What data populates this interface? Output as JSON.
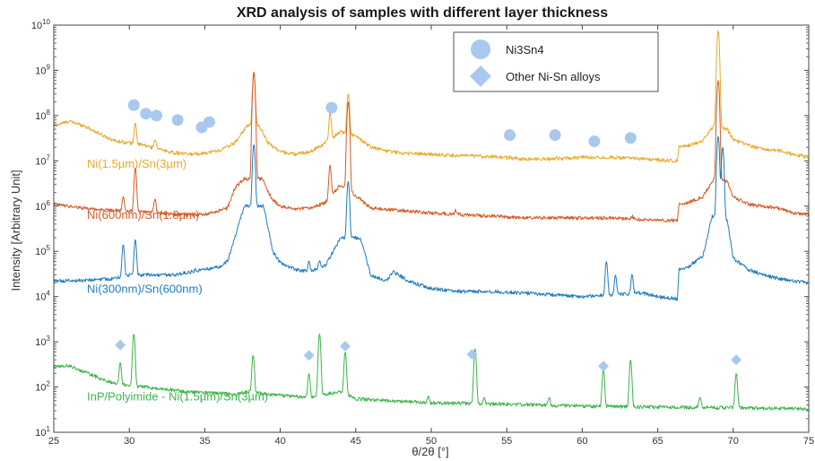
{
  "chart_data": {
    "type": "line",
    "title": "XRD analysis of samples with different layer thickness",
    "xlabel": "θ/2θ [°]",
    "ylabel": "Intensity [Arbitrary Unit]",
    "xlim": [
      25,
      75
    ],
    "ylim": [
      10,
      10000000000
    ],
    "yscale": "log",
    "x_ticks": [
      25,
      30,
      35,
      40,
      45,
      50,
      55,
      60,
      65,
      70,
      75
    ],
    "y_ticks": [
      {
        "value": 10,
        "base": "10",
        "exp": "1"
      },
      {
        "value": 100,
        "base": "10",
        "exp": "2"
      },
      {
        "value": 1000,
        "base": "10",
        "exp": "3"
      },
      {
        "value": 10000,
        "base": "10",
        "exp": "4"
      },
      {
        "value": 100000,
        "base": "10",
        "exp": "5"
      },
      {
        "value": 1000000,
        "base": "10",
        "exp": "6"
      },
      {
        "value": 10000000,
        "base": "10",
        "exp": "7"
      },
      {
        "value": 100000000,
        "base": "10",
        "exp": "8"
      },
      {
        "value": 1000000000,
        "base": "10",
        "exp": "9"
      },
      {
        "value": 10000000000,
        "base": "10",
        "exp": "10"
      }
    ],
    "grid": false,
    "legend_position": "top-right",
    "legend": [
      {
        "label": "Ni3Sn4",
        "marker": "circle"
      },
      {
        "label": "Other Ni-Sn alloys",
        "marker": "diamond"
      }
    ],
    "marker_color": "#a9c8ee",
    "series": [
      {
        "name": "Ni(1.5µm)/Sn(3µm)",
        "color": "#e8a92a",
        "label_at": [
          27.2,
          7000000
        ],
        "base": [
          [
            25,
            60000000
          ],
          [
            26,
            75000000
          ],
          [
            27,
            60000000
          ],
          [
            28,
            40000000
          ],
          [
            29,
            28000000
          ],
          [
            30,
            25000000
          ],
          [
            31,
            22000000
          ],
          [
            32,
            18000000
          ],
          [
            33,
            15000000
          ],
          [
            34,
            14000000
          ],
          [
            35,
            15000000
          ],
          [
            36,
            17000000
          ],
          [
            37,
            25000000
          ],
          [
            37.8,
            60000000
          ],
          [
            38.6,
            60000000
          ],
          [
            39.2,
            25000000
          ],
          [
            40,
            16000000
          ],
          [
            41,
            14000000
          ],
          [
            42,
            16000000
          ],
          [
            43,
            25000000
          ],
          [
            44,
            45000000
          ],
          [
            45,
            35000000
          ],
          [
            46,
            20000000
          ],
          [
            47,
            17000000
          ],
          [
            48,
            15000000
          ],
          [
            50,
            14000000
          ],
          [
            52,
            13000000
          ],
          [
            54,
            12500000
          ],
          [
            56,
            11000000
          ],
          [
            58,
            11000000
          ],
          [
            60,
            12000000
          ],
          [
            62,
            12000000
          ],
          [
            64,
            11000000
          ],
          [
            66.3,
            10000000
          ],
          [
            66.4,
            20000000
          ],
          [
            67,
            22000000
          ],
          [
            68,
            28000000
          ],
          [
            68.7,
            60000000
          ],
          [
            69.6,
            50000000
          ],
          [
            70,
            30000000
          ],
          [
            71,
            22000000
          ],
          [
            72,
            18000000
          ],
          [
            73,
            17000000
          ],
          [
            74,
            14000000
          ],
          [
            75,
            12000000
          ]
        ],
        "peaks": [
          [
            29.6,
            25000000
          ],
          [
            30.4,
            70000000
          ],
          [
            31.7,
            30000000
          ],
          [
            33.2,
            15000000
          ],
          [
            34.4,
            10000000
          ],
          [
            35.6,
            6000000
          ],
          [
            38.25,
            950000000
          ],
          [
            41.9,
            8000000
          ],
          [
            43.3,
            120000000
          ],
          [
            44.5,
            300000000
          ],
          [
            55.2,
            12000000
          ],
          [
            58.3,
            12000000
          ],
          [
            60.9,
            6000000
          ],
          [
            61.8,
            10000000
          ],
          [
            63.3,
            12000000
          ],
          [
            69.0,
            7500000000
          ],
          [
            73.0,
            10000000
          ]
        ]
      },
      {
        "name": "Ni(600nm)/Sn(1.8µm)",
        "color": "#d55a27",
        "label_at": [
          27.2,
          520000
        ],
        "base": [
          [
            25,
            1100000
          ],
          [
            27,
            900000
          ],
          [
            29,
            800000
          ],
          [
            31,
            750000
          ],
          [
            33,
            650000
          ],
          [
            35,
            650000
          ],
          [
            36.5,
            900000
          ],
          [
            37,
            2500000
          ],
          [
            37.6,
            4000000
          ],
          [
            38.8,
            4000000
          ],
          [
            39.4,
            1500000
          ],
          [
            40,
            1000000
          ],
          [
            41,
            850000
          ],
          [
            42,
            900000
          ],
          [
            43,
            1200000
          ],
          [
            44,
            3000000
          ],
          [
            45,
            1700000
          ],
          [
            46,
            900000
          ],
          [
            48,
            800000
          ],
          [
            50,
            700000
          ],
          [
            52,
            650000
          ],
          [
            54,
            600000
          ],
          [
            56,
            550000
          ],
          [
            58,
            550000
          ],
          [
            60,
            550000
          ],
          [
            62,
            550000
          ],
          [
            64,
            500000
          ],
          [
            66.3,
            480000
          ],
          [
            66.4,
            1100000
          ],
          [
            67,
            1200000
          ],
          [
            68,
            1600000
          ],
          [
            68.7,
            4000000
          ],
          [
            69.6,
            3500000
          ],
          [
            70,
            1600000
          ],
          [
            71,
            1100000
          ],
          [
            72,
            1000000
          ],
          [
            73,
            900000
          ],
          [
            74,
            700000
          ],
          [
            75,
            650000
          ]
        ],
        "peaks": [
          [
            29.6,
            1600000
          ],
          [
            30.4,
            7000000
          ],
          [
            31.7,
            1500000
          ],
          [
            33.2,
            500000
          ],
          [
            34.4,
            400000
          ],
          [
            35.6,
            300000
          ],
          [
            38.25,
            900000000
          ],
          [
            41.9,
            600000
          ],
          [
            43.3,
            8000000
          ],
          [
            44.5,
            200000000
          ],
          [
            51.6,
            800000
          ],
          [
            55.2,
            400000
          ],
          [
            58.3,
            500000
          ],
          [
            60.9,
            300000
          ],
          [
            61.8,
            500000
          ],
          [
            63.3,
            600000
          ],
          [
            69.0,
            600000000
          ],
          [
            73.0,
            500000
          ]
        ]
      },
      {
        "name": "Ni(300nm)/Sn(600nm)",
        "color": "#1f7bbf",
        "label_at": [
          27.2,
          12000
        ],
        "base": [
          [
            25,
            22000
          ],
          [
            27,
            23000
          ],
          [
            29,
            25000
          ],
          [
            30,
            30000
          ],
          [
            31,
            30000
          ],
          [
            33,
            30000
          ],
          [
            34,
            35000
          ],
          [
            35,
            40000
          ],
          [
            36,
            45000
          ],
          [
            36.5,
            60000
          ],
          [
            37,
            200000
          ],
          [
            37.6,
            1000000
          ],
          [
            38.9,
            1000000
          ],
          [
            39.5,
            100000
          ],
          [
            40,
            55000
          ],
          [
            41,
            40000
          ],
          [
            42,
            35000
          ],
          [
            43,
            50000
          ],
          [
            44,
            200000
          ],
          [
            45.3,
            200000
          ],
          [
            46,
            30000
          ],
          [
            47,
            22000
          ],
          [
            47.5,
            35000
          ],
          [
            48.5,
            22000
          ],
          [
            50,
            15000
          ],
          [
            52,
            13000
          ],
          [
            54,
            13000
          ],
          [
            56,
            12000
          ],
          [
            58,
            11000
          ],
          [
            60,
            10000
          ],
          [
            62,
            11000
          ],
          [
            64,
            12000
          ],
          [
            65,
            10000
          ],
          [
            66.3,
            9000
          ],
          [
            66.4,
            40000
          ],
          [
            67,
            45000
          ],
          [
            68,
            80000
          ],
          [
            68.6,
            600000
          ],
          [
            69.6,
            500000
          ],
          [
            70,
            70000
          ],
          [
            71,
            40000
          ],
          [
            72,
            30000
          ],
          [
            73,
            25000
          ],
          [
            74,
            22000
          ],
          [
            75,
            20000
          ]
        ],
        "peaks": [
          [
            29.6,
            140000
          ],
          [
            30.4,
            180000
          ],
          [
            34.4,
            40000
          ],
          [
            35.6,
            20000
          ],
          [
            36.9,
            40000
          ],
          [
            38.25,
            23000000
          ],
          [
            41.9,
            60000
          ],
          [
            42.6,
            60000
          ],
          [
            44.5,
            3500000
          ],
          [
            53.4,
            10000
          ],
          [
            61.6,
            60000
          ],
          [
            62.2,
            30000
          ],
          [
            63.3,
            30000
          ],
          [
            69.0,
            35000000
          ],
          [
            69.3,
            20000000
          ]
        ]
      },
      {
        "name": "InP/Polyimide - Ni(1.5µm)/Sn(3µm)",
        "color": "#3cb44a",
        "label_at": [
          27.2,
          50
        ],
        "base": [
          [
            25,
            280
          ],
          [
            26,
            300
          ],
          [
            27,
            220
          ],
          [
            28,
            160
          ],
          [
            29,
            120
          ],
          [
            30,
            110
          ],
          [
            31,
            100
          ],
          [
            33,
            85
          ],
          [
            35,
            75
          ],
          [
            37,
            70
          ],
          [
            38,
            80
          ],
          [
            39,
            70
          ],
          [
            40,
            65
          ],
          [
            42,
            60
          ],
          [
            43,
            70
          ],
          [
            44,
            80
          ],
          [
            45,
            55
          ],
          [
            47,
            50
          ],
          [
            50,
            45
          ],
          [
            55,
            42
          ],
          [
            60,
            38
          ],
          [
            65,
            36
          ],
          [
            70,
            35
          ],
          [
            75,
            33
          ]
        ],
        "peaks": [
          [
            29.4,
            350
          ],
          [
            30.3,
            1500
          ],
          [
            35.4,
            50
          ],
          [
            38.2,
            500
          ],
          [
            41.9,
            200
          ],
          [
            42.6,
            1500
          ],
          [
            44.3,
            600
          ],
          [
            49.8,
            60
          ],
          [
            52.9,
            700
          ],
          [
            53.5,
            60
          ],
          [
            57.8,
            60
          ],
          [
            61.4,
            250
          ],
          [
            63.2,
            400
          ],
          [
            67.8,
            60
          ],
          [
            70.2,
            200
          ]
        ]
      }
    ],
    "ni3sn4_markers": [
      [
        30.3,
        170000000
      ],
      [
        31.1,
        110000000
      ],
      [
        31.8,
        100000000
      ],
      [
        33.2,
        80000000
      ],
      [
        34.8,
        55000000
      ],
      [
        35.3,
        72000000
      ],
      [
        43.4,
        150000000
      ],
      [
        55.2,
        37000000
      ],
      [
        58.2,
        37000000
      ],
      [
        60.8,
        27000000
      ],
      [
        63.2,
        32000000
      ]
    ],
    "other_markers": [
      [
        29.4,
        850
      ],
      [
        41.9,
        500
      ],
      [
        44.3,
        800
      ],
      [
        52.7,
        530
      ],
      [
        61.4,
        290
      ],
      [
        70.2,
        400
      ]
    ]
  }
}
